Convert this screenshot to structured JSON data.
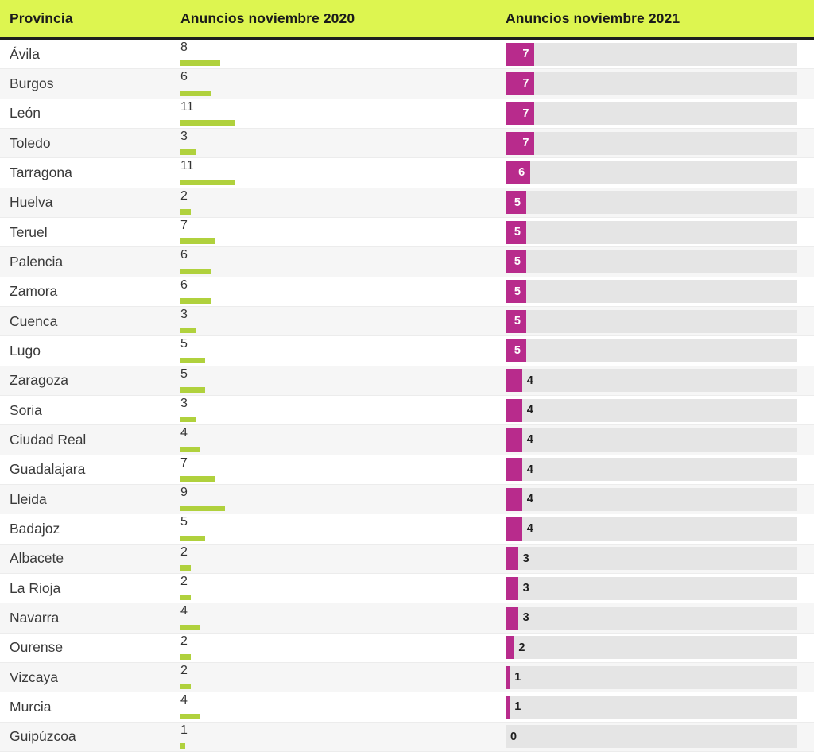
{
  "header": {
    "col_provincia": "Provincia",
    "col_2020": "Anuncios noviembre 2020",
    "col_2021": "Anuncios noviembre 2021"
  },
  "colors": {
    "header_bg": "#ddf550",
    "bar_2020": "#b0d13d",
    "bar_2021": "#b82b8c",
    "track": "#e5e5e5",
    "row_alt": "#f6f6f6"
  },
  "chart_data": {
    "type": "bar",
    "orientation": "horizontal",
    "presentation": "table-embedded-bars",
    "categories": [
      "Ávila",
      "Burgos",
      "León",
      "Toledo",
      "Tarragona",
      "Huelva",
      "Teruel",
      "Palencia",
      "Zamora",
      "Cuenca",
      "Lugo",
      "Zaragoza",
      "Soria",
      "Ciudad Real",
      "Guadalajara",
      "Lleida",
      "Badajoz",
      "Albacete",
      "La Rioja",
      "Navarra",
      "Ourense",
      "Vizcaya",
      "Murcia",
      "Guipúzcoa"
    ],
    "series": [
      {
        "name": "Anuncios noviembre 2020",
        "color": "#b0d13d",
        "label_position": "above-bar",
        "values": [
          8,
          6,
          11,
          3,
          11,
          2,
          7,
          6,
          6,
          3,
          5,
          5,
          3,
          4,
          7,
          9,
          5,
          2,
          2,
          4,
          2,
          2,
          4,
          1
        ]
      },
      {
        "name": "Anuncios noviembre 2021",
        "color": "#b82b8c",
        "label_position": "on-bar",
        "values": [
          7,
          7,
          7,
          7,
          6,
          5,
          5,
          5,
          5,
          5,
          5,
          4,
          4,
          4,
          4,
          4,
          4,
          3,
          3,
          3,
          2,
          1,
          1,
          0
        ]
      }
    ],
    "title": "",
    "xlabel": "",
    "ylabel": "Provincia",
    "legend": "column headers",
    "grid": false
  }
}
